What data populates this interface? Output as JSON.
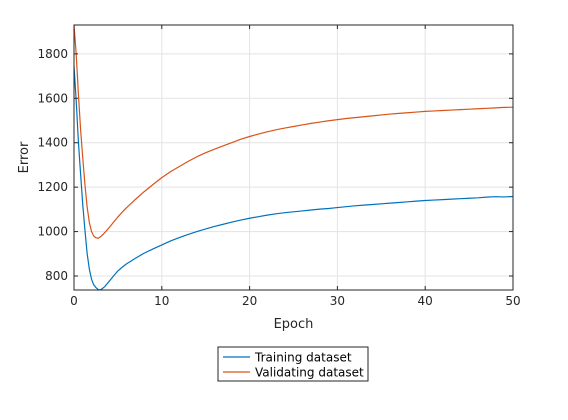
{
  "chart_data": {
    "type": "line",
    "xlabel": "Epoch",
    "ylabel": "Error",
    "xlim": [
      0,
      50
    ],
    "ylim": [
      737,
      1930
    ],
    "xticks": [
      0,
      10,
      20,
      30,
      40,
      50
    ],
    "yticks": [
      800,
      1000,
      1200,
      1400,
      1600,
      1800
    ],
    "grid": true,
    "legend_position": "bottom-center-outside",
    "series": [
      {
        "name": "Training dataset",
        "color": "#0072BD",
        "points": [
          [
            0,
            1745
          ],
          [
            0.25,
            1590
          ],
          [
            0.5,
            1405
          ],
          [
            0.75,
            1260
          ],
          [
            1,
            1120
          ],
          [
            1.25,
            1005
          ],
          [
            1.5,
            900
          ],
          [
            1.75,
            830
          ],
          [
            2,
            785
          ],
          [
            2.25,
            760
          ],
          [
            2.5,
            748
          ],
          [
            2.75,
            739
          ],
          [
            3,
            737
          ],
          [
            3.5,
            752
          ],
          [
            4,
            776
          ],
          [
            4.5,
            800
          ],
          [
            5,
            823
          ],
          [
            5.5,
            840
          ],
          [
            6,
            855
          ],
          [
            7,
            880
          ],
          [
            8,
            903
          ],
          [
            9,
            922
          ],
          [
            10,
            940
          ],
          [
            11,
            958
          ],
          [
            12,
            973
          ],
          [
            13,
            987
          ],
          [
            14,
            1000
          ],
          [
            15,
            1012
          ],
          [
            16,
            1023
          ],
          [
            17,
            1033
          ],
          [
            18,
            1043
          ],
          [
            19,
            1052
          ],
          [
            20,
            1060
          ],
          [
            21,
            1067
          ],
          [
            22,
            1074
          ],
          [
            23,
            1080
          ],
          [
            24,
            1085
          ],
          [
            25,
            1089
          ],
          [
            26,
            1093
          ],
          [
            27,
            1097
          ],
          [
            28,
            1101
          ],
          [
            29,
            1104
          ],
          [
            30,
            1108
          ],
          [
            31,
            1112
          ],
          [
            32,
            1116
          ],
          [
            33,
            1119
          ],
          [
            34,
            1122
          ],
          [
            35,
            1125
          ],
          [
            36,
            1128
          ],
          [
            37,
            1131
          ],
          [
            38,
            1134
          ],
          [
            39,
            1137
          ],
          [
            40,
            1140
          ],
          [
            41,
            1142
          ],
          [
            42,
            1144
          ],
          [
            43,
            1146
          ],
          [
            44,
            1148
          ],
          [
            45,
            1150
          ],
          [
            46,
            1152
          ],
          [
            47,
            1155
          ],
          [
            48,
            1157
          ],
          [
            49,
            1156
          ],
          [
            50,
            1158
          ]
        ]
      },
      {
        "name": "Validating dataset",
        "color": "#D95319",
        "points": [
          [
            0,
            1930
          ],
          [
            0.25,
            1800
          ],
          [
            0.5,
            1620
          ],
          [
            0.75,
            1460
          ],
          [
            1,
            1330
          ],
          [
            1.25,
            1210
          ],
          [
            1.5,
            1110
          ],
          [
            1.75,
            1040
          ],
          [
            2,
            1000
          ],
          [
            2.25,
            980
          ],
          [
            2.5,
            972
          ],
          [
            2.75,
            970
          ],
          [
            3,
            976
          ],
          [
            3.5,
            995
          ],
          [
            4,
            1018
          ],
          [
            4.5,
            1042
          ],
          [
            5,
            1066
          ],
          [
            5.5,
            1088
          ],
          [
            6,
            1108
          ],
          [
            7,
            1145
          ],
          [
            8,
            1180
          ],
          [
            9,
            1212
          ],
          [
            10,
            1243
          ],
          [
            11,
            1270
          ],
          [
            12,
            1293
          ],
          [
            13,
            1316
          ],
          [
            14,
            1337
          ],
          [
            15,
            1355
          ],
          [
            16,
            1371
          ],
          [
            17,
            1386
          ],
          [
            18,
            1401
          ],
          [
            19,
            1416
          ],
          [
            20,
            1428
          ],
          [
            21,
            1439
          ],
          [
            22,
            1449
          ],
          [
            23,
            1458
          ],
          [
            24,
            1466
          ],
          [
            25,
            1473
          ],
          [
            26,
            1480
          ],
          [
            27,
            1487
          ],
          [
            28,
            1493
          ],
          [
            29,
            1499
          ],
          [
            30,
            1504
          ],
          [
            31,
            1509
          ],
          [
            32,
            1513
          ],
          [
            33,
            1517
          ],
          [
            34,
            1521
          ],
          [
            35,
            1525
          ],
          [
            36,
            1529
          ],
          [
            37,
            1532
          ],
          [
            38,
            1535
          ],
          [
            39,
            1538
          ],
          [
            40,
            1541
          ],
          [
            41,
            1543
          ],
          [
            42,
            1545
          ],
          [
            43,
            1547
          ],
          [
            44,
            1549
          ],
          [
            45,
            1551
          ],
          [
            46,
            1553
          ],
          [
            47,
            1555
          ],
          [
            48,
            1557
          ],
          [
            49,
            1559
          ],
          [
            50,
            1560
          ]
        ]
      }
    ]
  }
}
